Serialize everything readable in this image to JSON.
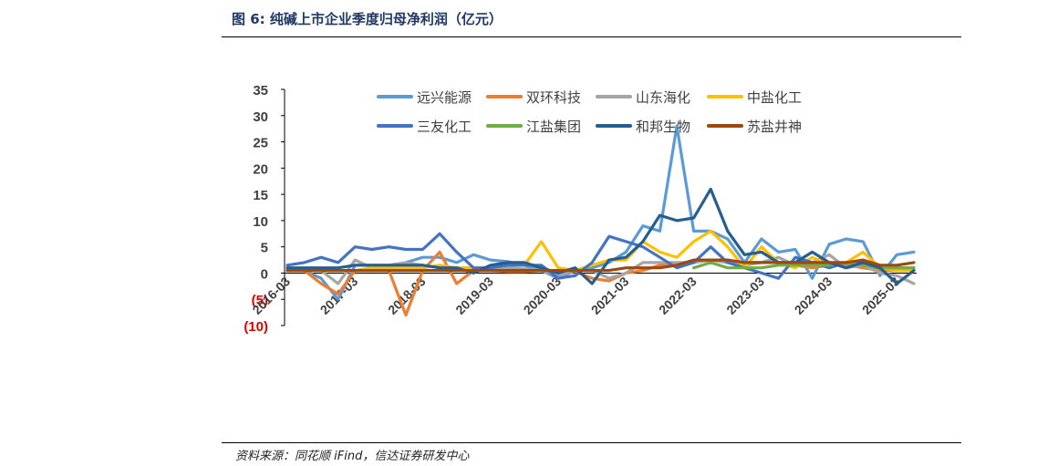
{
  "figure": {
    "title": "图 6:  纯碱上市企业季度归母净利润（亿元）",
    "source": "资料来源：同花顺 iFind，信达证券研发中心"
  },
  "chart_data": {
    "type": "line",
    "title": "",
    "xlabel": "",
    "ylabel": "",
    "ylim": [
      -10,
      35
    ],
    "y_ticks": [
      35,
      30,
      25,
      20,
      15,
      10,
      5,
      0,
      -5,
      -10
    ],
    "y_tick_labels": [
      "35",
      "30",
      "25",
      "20",
      "15",
      "10",
      "5",
      "0",
      "(5)",
      "(10)"
    ],
    "negative_label_color": "#e00000",
    "x": [
      "2016-03",
      "2016-06",
      "2016-09",
      "2016-12",
      "2017-03",
      "2017-06",
      "2017-09",
      "2017-12",
      "2018-03",
      "2018-06",
      "2018-09",
      "2018-12",
      "2019-03",
      "2019-06",
      "2019-09",
      "2019-12",
      "2020-03",
      "2020-06",
      "2020-09",
      "2020-12",
      "2021-03",
      "2021-06",
      "2021-09",
      "2021-12",
      "2022-03",
      "2022-06",
      "2022-09",
      "2022-12",
      "2023-03",
      "2023-06",
      "2023-09",
      "2023-12",
      "2024-03",
      "2024-06",
      "2024-09",
      "2024-12",
      "2025-03",
      "2025-06"
    ],
    "x_tick_labels": [
      "2016-03",
      "2017-03",
      "2018-03",
      "2019-03",
      "2020-03",
      "2021-03",
      "2022-03",
      "2023-03",
      "2024-03",
      "2025-03"
    ],
    "legend_position": "top",
    "grid": false,
    "series": [
      {
        "name": "远兴能源",
        "color": "#5b9bd5",
        "values": [
          0.5,
          0.5,
          -1,
          -5,
          1.5,
          1.5,
          1.5,
          2,
          3,
          3,
          2,
          3.5,
          2.5,
          2.2,
          1.5,
          0.5,
          -1,
          0.5,
          1,
          2,
          4,
          9,
          8,
          28,
          8,
          8,
          6.5,
          2,
          6.5,
          4,
          4.5,
          -1,
          5.5,
          6.5,
          6,
          -0.5,
          3.5,
          4
        ]
      },
      {
        "name": "双环科技",
        "color": "#ed7d31",
        "values": [
          0.5,
          0.5,
          -2,
          -4,
          0.5,
          0.5,
          0.5,
          -8,
          0.5,
          4,
          -2,
          0.5,
          0.5,
          0.3,
          0.3,
          0.5,
          0.3,
          0.3,
          -1,
          -1.5,
          0,
          0.5,
          1.5,
          1.5,
          2,
          2.5,
          2,
          2,
          2,
          2,
          1.5,
          1,
          1.5,
          1.5,
          1,
          0.5,
          0.5,
          0.5
        ]
      },
      {
        "name": "山东海化",
        "color": "#a5a5a5",
        "values": [
          0.5,
          0.5,
          0.5,
          -2,
          2.5,
          1,
          1.5,
          2,
          1.5,
          1,
          1,
          1,
          0.5,
          1,
          0.8,
          0.5,
          -0.5,
          0.5,
          0.5,
          -1,
          0,
          2,
          2,
          2,
          2,
          2.5,
          2,
          1.5,
          2,
          3,
          1.5,
          2,
          3.5,
          1,
          1.5,
          0,
          -0.5,
          -2
        ]
      },
      {
        "name": "中盐化工",
        "color": "#ffc000",
        "values": [
          0.5,
          0.5,
          0.5,
          0.5,
          0.5,
          1,
          1,
          1,
          1,
          1.5,
          1,
          1,
          1,
          1.5,
          1.5,
          6,
          1,
          0.5,
          1.5,
          2.5,
          2.5,
          6,
          4,
          3,
          6,
          8,
          5,
          1,
          5,
          2,
          1,
          3,
          1.5,
          2,
          4,
          1,
          0.5,
          0.5
        ]
      },
      {
        "name": "三友化工",
        "color": "#4472c4",
        "values": [
          1.5,
          2,
          3,
          2,
          5,
          4.5,
          5,
          4.5,
          4.5,
          7.5,
          4,
          1,
          1,
          1.5,
          1.5,
          1.5,
          -1,
          -0.5,
          2,
          7,
          6,
          5,
          3,
          1,
          2,
          5,
          2,
          1,
          0,
          -1,
          3,
          2,
          1,
          2,
          2,
          1,
          1,
          1
        ]
      },
      {
        "name": "江盐集团",
        "color": "#70ad47",
        "values": [
          null,
          null,
          null,
          null,
          null,
          null,
          null,
          null,
          null,
          null,
          null,
          null,
          null,
          null,
          null,
          null,
          null,
          null,
          null,
          null,
          null,
          null,
          null,
          null,
          1,
          2,
          1,
          1,
          1,
          1.5,
          1.5,
          1.5,
          1.5,
          2,
          1.5,
          1,
          1,
          1
        ]
      },
      {
        "name": "和邦生物",
        "color": "#255e91",
        "values": [
          1,
          1,
          1,
          1,
          1.5,
          1.5,
          1.5,
          1.5,
          1.5,
          1,
          1,
          0,
          1.5,
          2,
          2,
          1,
          0,
          1,
          -2,
          2.5,
          3,
          6,
          11,
          10,
          10.5,
          16,
          8,
          3.5,
          4,
          2,
          2,
          4,
          2,
          1,
          2,
          1,
          -2,
          0.5
        ]
      },
      {
        "name": "苏盐井神",
        "color": "#9e480e",
        "values": [
          0.5,
          0.5,
          0.5,
          0.5,
          0.5,
          0.5,
          0.5,
          0.5,
          0.5,
          0.5,
          0.5,
          0.5,
          0.5,
          0.5,
          0.5,
          0.5,
          0.5,
          0.5,
          0.5,
          0.5,
          1,
          1,
          1,
          1.5,
          2.5,
          2.5,
          2.5,
          2,
          2,
          2,
          2,
          2,
          2,
          2,
          2.5,
          1.5,
          1.5,
          2
        ]
      }
    ]
  }
}
